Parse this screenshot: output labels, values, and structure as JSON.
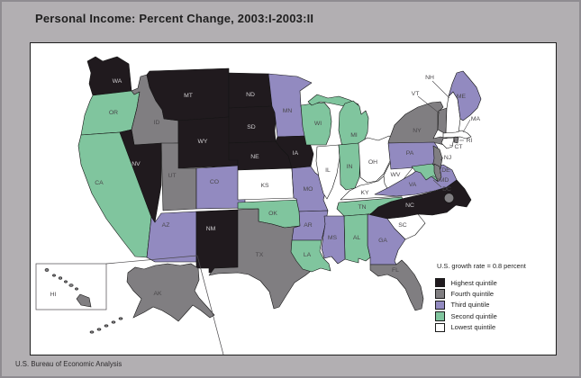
{
  "title": "Personal Income: Percent Change, 2003:I-2003:II",
  "footer": "U.S. Bureau of Economic Analysis",
  "note": "U.S. growth rate = 0.8 percent",
  "colors": {
    "highest": "#201a1e",
    "fourth": "#807e81",
    "third": "#928ac0",
    "second": "#80c59e",
    "lowest": "#ffffff",
    "panel_background": "#ffffff",
    "page_background": "#b2afb2"
  },
  "legend": {
    "items": [
      {
        "key": "highest",
        "label": "Highest quintile"
      },
      {
        "key": "fourth",
        "label": "Fourth quintile"
      },
      {
        "key": "third",
        "label": "Third quintile"
      },
      {
        "key": "second",
        "label": "Second quintile"
      },
      {
        "key": "lowest",
        "label": "Lowest quintile"
      }
    ]
  },
  "map": {
    "states": [
      {
        "abbr": "WA",
        "quintile": "highest"
      },
      {
        "abbr": "OR",
        "quintile": "second"
      },
      {
        "abbr": "CA",
        "quintile": "second"
      },
      {
        "abbr": "NV",
        "quintile": "highest"
      },
      {
        "abbr": "ID",
        "quintile": "fourth"
      },
      {
        "abbr": "MT",
        "quintile": "highest"
      },
      {
        "abbr": "WY",
        "quintile": "highest"
      },
      {
        "abbr": "UT",
        "quintile": "fourth"
      },
      {
        "abbr": "CO",
        "quintile": "third"
      },
      {
        "abbr": "AZ",
        "quintile": "third"
      },
      {
        "abbr": "NM",
        "quintile": "highest"
      },
      {
        "abbr": "ND",
        "quintile": "highest"
      },
      {
        "abbr": "SD",
        "quintile": "highest"
      },
      {
        "abbr": "NE",
        "quintile": "highest"
      },
      {
        "abbr": "KS",
        "quintile": "lowest"
      },
      {
        "abbr": "OK",
        "quintile": "second"
      },
      {
        "abbr": "TX",
        "quintile": "fourth"
      },
      {
        "abbr": "MN",
        "quintile": "third"
      },
      {
        "abbr": "IA",
        "quintile": "highest"
      },
      {
        "abbr": "MO",
        "quintile": "third"
      },
      {
        "abbr": "AR",
        "quintile": "third"
      },
      {
        "abbr": "LA",
        "quintile": "second"
      },
      {
        "abbr": "WI",
        "quintile": "second"
      },
      {
        "abbr": "MI",
        "quintile": "second"
      },
      {
        "abbr": "IL",
        "quintile": "lowest"
      },
      {
        "abbr": "IN",
        "quintile": "second"
      },
      {
        "abbr": "OH",
        "quintile": "lowest"
      },
      {
        "abbr": "KY",
        "quintile": "lowest"
      },
      {
        "abbr": "TN",
        "quintile": "second"
      },
      {
        "abbr": "MS",
        "quintile": "third"
      },
      {
        "abbr": "AL",
        "quintile": "second"
      },
      {
        "abbr": "GA",
        "quintile": "third"
      },
      {
        "abbr": "FL",
        "quintile": "fourth"
      },
      {
        "abbr": "SC",
        "quintile": "lowest"
      },
      {
        "abbr": "NC",
        "quintile": "highest"
      },
      {
        "abbr": "VA",
        "quintile": "third"
      },
      {
        "abbr": "WV",
        "quintile": "lowest"
      },
      {
        "abbr": "OH2",
        "quintile": "lowest"
      },
      {
        "abbr": "PA",
        "quintile": "third"
      },
      {
        "abbr": "NY",
        "quintile": "fourth"
      },
      {
        "abbr": "NJ",
        "quintile": "fourth"
      },
      {
        "abbr": "DE",
        "quintile": "fourth"
      },
      {
        "abbr": "MD",
        "quintile": "second"
      },
      {
        "abbr": "DC",
        "quintile": "fourth"
      },
      {
        "abbr": "VT",
        "quintile": "fourth"
      },
      {
        "abbr": "NH",
        "quintile": "lowest"
      },
      {
        "abbr": "ME",
        "quintile": "third"
      },
      {
        "abbr": "MA",
        "quintile": "lowest"
      },
      {
        "abbr": "CT",
        "quintile": "lowest"
      },
      {
        "abbr": "RI",
        "quintile": "fourth"
      },
      {
        "abbr": "AK",
        "quintile": "fourth"
      },
      {
        "abbr": "HI",
        "quintile": "fourth"
      }
    ]
  }
}
